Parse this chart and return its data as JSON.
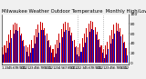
{
  "title": "Milwaukee Weather Outdoor Temperature  Monthly High/Low",
  "title_fontsize": 3.8,
  "background_color": "#f0f0f0",
  "plot_bg_color": "#ffffff",
  "highs": [
    33,
    36,
    45,
    58,
    68,
    79,
    83,
    81,
    73,
    61,
    47,
    36,
    32,
    38,
    47,
    57,
    70,
    79,
    85,
    82,
    72,
    60,
    48,
    35,
    29,
    37,
    48,
    60,
    70,
    80,
    84,
    83,
    73,
    62,
    47,
    34,
    32,
    40,
    50,
    60,
    71,
    81,
    86,
    84,
    74,
    63,
    49,
    35,
    28,
    35,
    44,
    57,
    67,
    78,
    82,
    80,
    71,
    58,
    44,
    30
  ],
  "lows": [
    18,
    21,
    30,
    41,
    51,
    61,
    67,
    66,
    57,
    46,
    34,
    22,
    14,
    20,
    30,
    40,
    52,
    62,
    68,
    67,
    57,
    45,
    33,
    20,
    12,
    19,
    30,
    42,
    52,
    63,
    67,
    66,
    57,
    46,
    32,
    18,
    14,
    22,
    32,
    42,
    53,
    64,
    69,
    68,
    58,
    47,
    33,
    20,
    10,
    17,
    28,
    39,
    49,
    60,
    65,
    63,
    54,
    42,
    30,
    15
  ],
  "ylim": [
    -4,
    100
  ],
  "yticks": [
    0,
    20,
    40,
    60,
    80,
    100
  ],
  "ytick_labels": [
    "0",
    "20",
    "40",
    "60",
    "80",
    "100"
  ],
  "high_color": "#cc0000",
  "low_color": "#0000cc",
  "dotted_vlines": [
    36,
    48
  ],
  "ylabel_fontsize": 3.2,
  "xlabel_fontsize": 3.0,
  "bar_width": 0.45
}
